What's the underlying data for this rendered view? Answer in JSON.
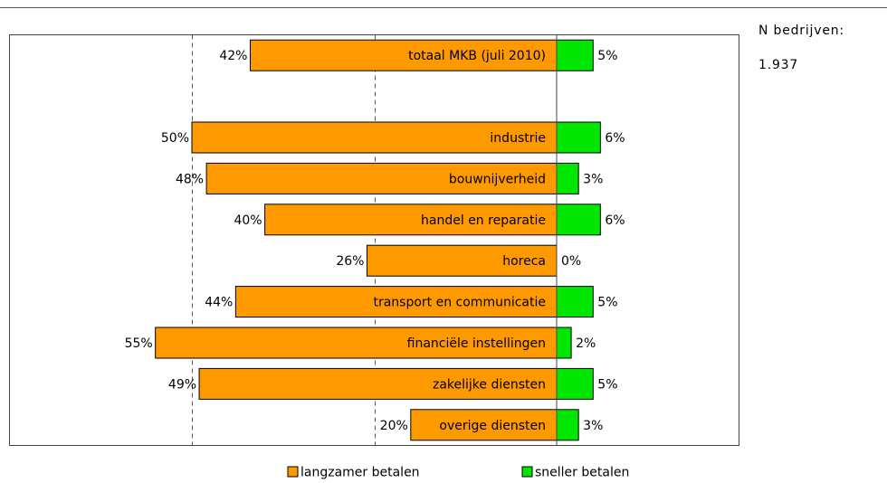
{
  "chart_data": {
    "type": "diverging-bar",
    "categories": [
      "totaal MKB (juli 2010)",
      null,
      "industrie",
      "bouwnijverheid",
      "handel en reparatie",
      "horeca",
      "transport en communicatie",
      "financiële instellingen",
      "zakelijke diensten",
      "overige diensten"
    ],
    "series": [
      {
        "name": "langzamer betalen",
        "color": "#ff9900",
        "direction": "left",
        "values": [
          42,
          null,
          50,
          48,
          40,
          26,
          44,
          55,
          49,
          20
        ],
        "value_labels": [
          "42%",
          null,
          "50%",
          "48%",
          "40%",
          "26%",
          "44%",
          "55%",
          "49%",
          "20%"
        ]
      },
      {
        "name": "sneller betalen",
        "color": "#00e600",
        "direction": "right",
        "values": [
          5,
          null,
          6,
          3,
          6,
          0,
          5,
          2,
          5,
          3
        ],
        "value_labels": [
          "5%",
          null,
          "6%",
          "3%",
          "6%",
          "0%",
          "5%",
          "2%",
          "5%",
          "3%"
        ]
      }
    ],
    "xlim": [
      -75,
      25
    ],
    "grid_lines": [
      -50,
      -25
    ],
    "annotations": [
      "N bedrijven:",
      "1.937"
    ]
  }
}
